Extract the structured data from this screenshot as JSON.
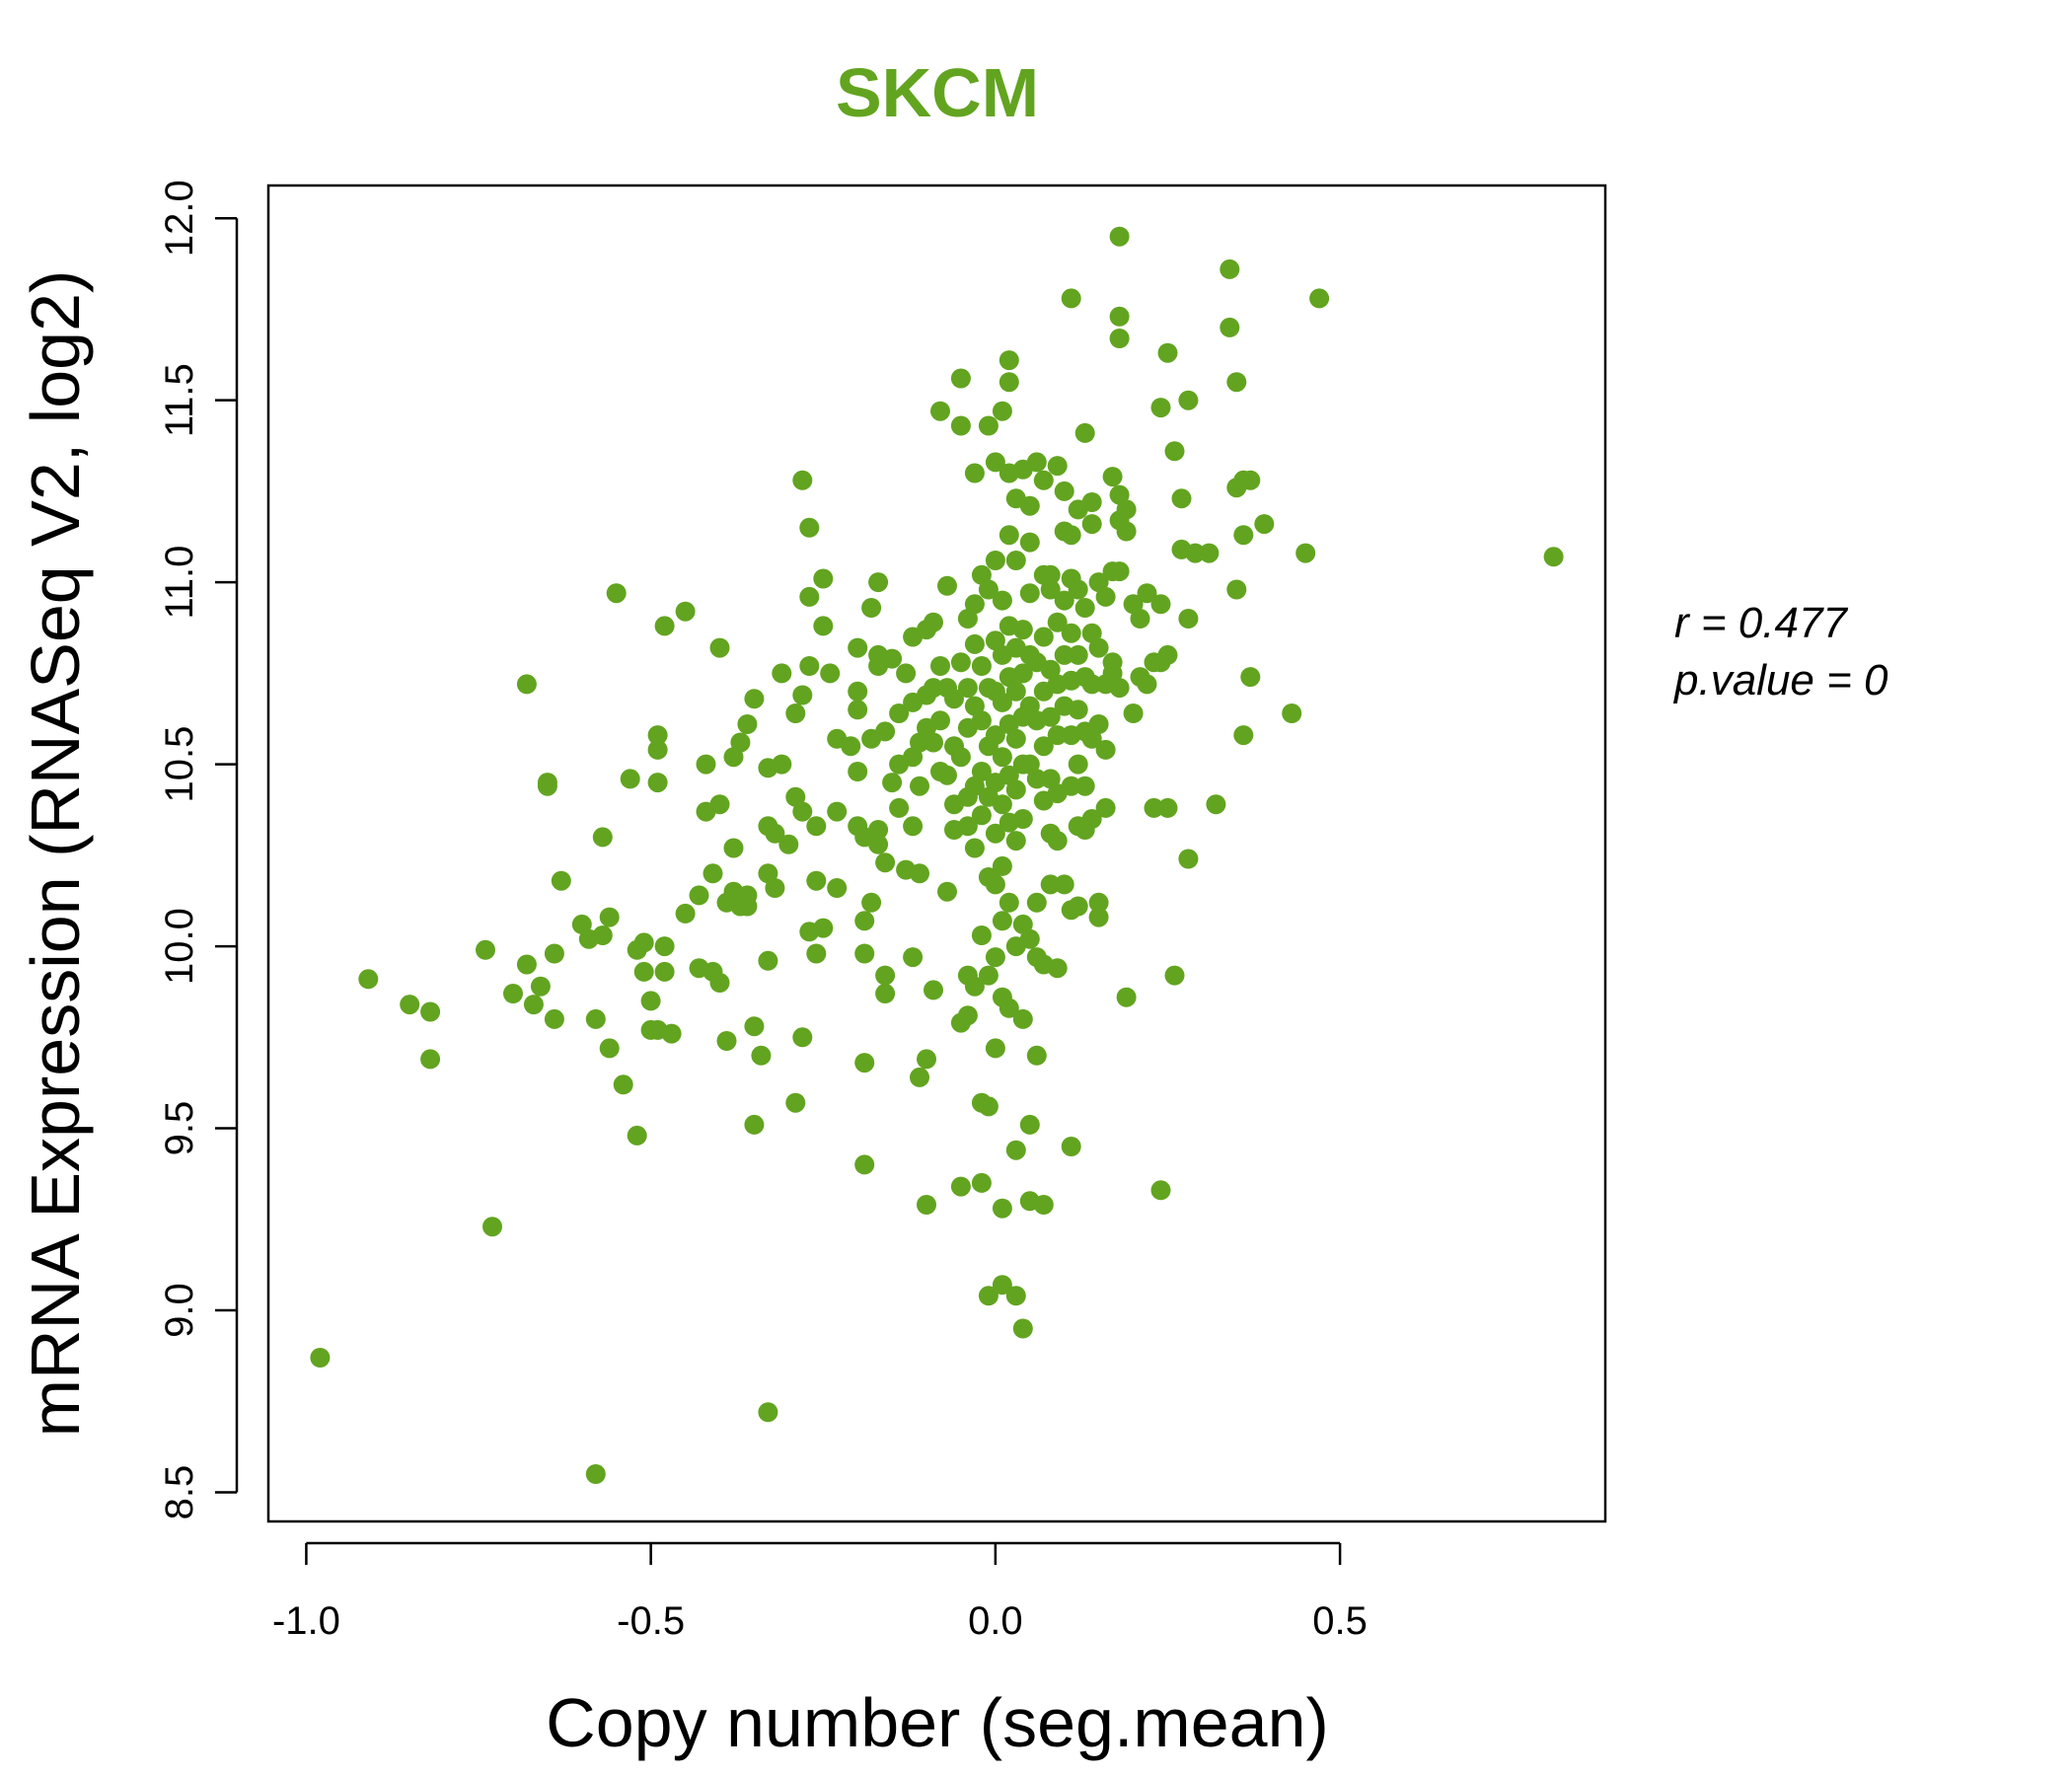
{
  "chart_data": {
    "type": "scatter",
    "title": "SKCM",
    "xlabel": "Copy number (seg.mean)",
    "ylabel": "mRNA Expression (RNASeq V2, log2)",
    "xlim": [
      -1.055,
      0.885
    ],
    "ylim": [
      8.42,
      12.09
    ],
    "x_ticks": [
      -1.0,
      -0.5,
      0.0,
      0.5
    ],
    "x_tick_labels": [
      "-1.0",
      "-0.5",
      "0.0",
      "0.5"
    ],
    "y_ticks": [
      8.5,
      9.0,
      9.5,
      10.0,
      10.5,
      11.0,
      11.5,
      12.0
    ],
    "y_tick_labels": [
      "8.5",
      "9.0",
      "9.5",
      "10.0",
      "10.5",
      "11.0",
      "11.5",
      "12.0"
    ],
    "grid": false,
    "point_color": "#62a420",
    "title_color": "#62a420",
    "annotations": [
      {
        "text": "r = 0.477"
      },
      {
        "text": "p.value = 0"
      }
    ],
    "points": [
      [
        -0.98,
        8.87
      ],
      [
        -0.58,
        8.55
      ],
      [
        -0.33,
        8.72
      ],
      [
        -0.73,
        9.23
      ],
      [
        -0.91,
        9.91
      ],
      [
        -0.85,
        9.84
      ],
      [
        -0.82,
        9.82
      ],
      [
        -0.82,
        9.69
      ],
      [
        -0.74,
        9.99
      ],
      [
        -0.7,
        9.87
      ],
      [
        -0.68,
        9.95
      ],
      [
        -0.67,
        9.84
      ],
      [
        -0.66,
        9.89
      ],
      [
        -0.64,
        9.98
      ],
      [
        -0.64,
        9.8
      ],
      [
        -0.68,
        10.72
      ],
      [
        -0.65,
        10.45
      ],
      [
        -0.65,
        10.44
      ],
      [
        -0.63,
        10.18
      ],
      [
        -0.6,
        10.06
      ],
      [
        -0.59,
        10.02
      ],
      [
        -0.58,
        9.8
      ],
      [
        -0.57,
        10.03
      ],
      [
        -0.56,
        10.08
      ],
      [
        -0.56,
        9.72
      ],
      [
        -0.57,
        10.3
      ],
      [
        -0.55,
        10.97
      ],
      [
        -0.54,
        9.62
      ],
      [
        -0.53,
        10.46
      ],
      [
        -0.52,
        9.99
      ],
      [
        -0.52,
        9.48
      ],
      [
        -0.51,
        10.01
      ],
      [
        -0.51,
        9.93
      ],
      [
        -0.5,
        9.85
      ],
      [
        -0.5,
        9.77
      ],
      [
        -0.49,
        9.77
      ],
      [
        -0.49,
        10.54
      ],
      [
        -0.49,
        10.58
      ],
      [
        -0.49,
        10.45
      ],
      [
        -0.48,
        10.88
      ],
      [
        -0.48,
        9.93
      ],
      [
        -0.48,
        10.0
      ],
      [
        -0.47,
        9.76
      ],
      [
        -0.45,
        10.92
      ],
      [
        -0.45,
        10.09
      ],
      [
        -0.43,
        10.14
      ],
      [
        -0.43,
        9.94
      ],
      [
        -0.42,
        10.37
      ],
      [
        -0.42,
        10.5
      ],
      [
        -0.41,
        10.2
      ],
      [
        -0.41,
        9.93
      ],
      [
        -0.4,
        9.9
      ],
      [
        -0.4,
        10.39
      ],
      [
        -0.4,
        10.82
      ],
      [
        -0.39,
        10.12
      ],
      [
        -0.39,
        9.74
      ],
      [
        -0.38,
        10.15
      ],
      [
        -0.38,
        10.52
      ],
      [
        -0.38,
        10.27
      ],
      [
        -0.37,
        10.11
      ],
      [
        -0.37,
        10.56
      ],
      [
        -0.36,
        10.11
      ],
      [
        -0.36,
        10.61
      ],
      [
        -0.36,
        10.14
      ],
      [
        -0.35,
        10.68
      ],
      [
        -0.35,
        9.51
      ],
      [
        -0.35,
        9.78
      ],
      [
        -0.34,
        9.7
      ],
      [
        -0.33,
        10.49
      ],
      [
        -0.33,
        10.33
      ],
      [
        -0.33,
        10.2
      ],
      [
        -0.33,
        9.96
      ],
      [
        -0.32,
        10.16
      ],
      [
        -0.32,
        10.31
      ],
      [
        -0.31,
        10.5
      ],
      [
        -0.31,
        10.75
      ],
      [
        -0.3,
        10.28
      ],
      [
        -0.29,
        9.57
      ],
      [
        -0.29,
        10.41
      ],
      [
        -0.29,
        10.64
      ],
      [
        -0.28,
        10.69
      ],
      [
        -0.28,
        10.37
      ],
      [
        -0.28,
        11.28
      ],
      [
        -0.28,
        9.75
      ],
      [
        -0.27,
        11.15
      ],
      [
        -0.27,
        10.04
      ],
      [
        -0.27,
        10.77
      ],
      [
        -0.27,
        10.96
      ],
      [
        -0.26,
        10.18
      ],
      [
        -0.26,
        10.33
      ],
      [
        -0.26,
        9.98
      ],
      [
        -0.25,
        10.88
      ],
      [
        -0.25,
        11.01
      ],
      [
        -0.25,
        10.05
      ],
      [
        -0.24,
        10.75
      ],
      [
        -0.23,
        10.16
      ],
      [
        -0.23,
        10.57
      ],
      [
        -0.23,
        10.37
      ],
      [
        -0.21,
        10.55
      ],
      [
        -0.2,
        10.7
      ],
      [
        -0.2,
        10.65
      ],
      [
        -0.2,
        10.48
      ],
      [
        -0.2,
        10.82
      ],
      [
        -0.2,
        10.33
      ],
      [
        -0.19,
        10.3
      ],
      [
        -0.19,
        10.07
      ],
      [
        -0.19,
        9.98
      ],
      [
        -0.19,
        9.68
      ],
      [
        -0.19,
        9.4
      ],
      [
        -0.18,
        10.12
      ],
      [
        -0.18,
        10.57
      ],
      [
        -0.18,
        10.93
      ],
      [
        -0.17,
        10.8
      ],
      [
        -0.17,
        11.0
      ],
      [
        -0.17,
        10.77
      ],
      [
        -0.17,
        10.28
      ],
      [
        -0.17,
        10.32
      ],
      [
        -0.16,
        10.59
      ],
      [
        -0.16,
        10.23
      ],
      [
        -0.16,
        9.92
      ],
      [
        -0.16,
        9.87
      ],
      [
        -0.15,
        10.79
      ],
      [
        -0.15,
        10.45
      ],
      [
        -0.14,
        10.5
      ],
      [
        -0.14,
        10.64
      ],
      [
        -0.14,
        10.38
      ],
      [
        -0.13,
        10.21
      ],
      [
        -0.13,
        10.75
      ],
      [
        -0.12,
        10.85
      ],
      [
        -0.12,
        10.67
      ],
      [
        -0.12,
        10.52
      ],
      [
        -0.12,
        10.33
      ],
      [
        -0.12,
        9.97
      ],
      [
        -0.11,
        10.2
      ],
      [
        -0.11,
        10.56
      ],
      [
        -0.11,
        10.44
      ],
      [
        -0.11,
        9.64
      ],
      [
        -0.1,
        10.69
      ],
      [
        -0.1,
        10.87
      ],
      [
        -0.1,
        10.6
      ],
      [
        -0.1,
        9.69
      ],
      [
        -0.1,
        9.29
      ],
      [
        -0.09,
        10.89
      ],
      [
        -0.09,
        10.71
      ],
      [
        -0.09,
        10.56
      ],
      [
        -0.09,
        9.88
      ],
      [
        -0.08,
        10.62
      ],
      [
        -0.08,
        10.77
      ],
      [
        -0.08,
        10.48
      ],
      [
        -0.08,
        11.47
      ],
      [
        -0.07,
        10.99
      ],
      [
        -0.07,
        10.71
      ],
      [
        -0.07,
        10.47
      ],
      [
        -0.07,
        10.15
      ],
      [
        -0.06,
        10.68
      ],
      [
        -0.06,
        10.55
      ],
      [
        -0.06,
        10.39
      ],
      [
        -0.06,
        10.32
      ],
      [
        -0.05,
        10.78
      ],
      [
        -0.05,
        10.52
      ],
      [
        -0.05,
        9.79
      ],
      [
        -0.05,
        11.56
      ],
      [
        -0.05,
        11.43
      ],
      [
        -0.05,
        9.34
      ],
      [
        -0.04,
        10.9
      ],
      [
        -0.04,
        10.71
      ],
      [
        -0.04,
        10.6
      ],
      [
        -0.04,
        10.41
      ],
      [
        -0.04,
        10.33
      ],
      [
        -0.04,
        9.92
      ],
      [
        -0.04,
        9.81
      ],
      [
        -0.03,
        10.94
      ],
      [
        -0.03,
        10.83
      ],
      [
        -0.03,
        10.66
      ],
      [
        -0.03,
        10.44
      ],
      [
        -0.03,
        10.27
      ],
      [
        -0.03,
        9.89
      ],
      [
        -0.03,
        11.3
      ],
      [
        -0.02,
        11.02
      ],
      [
        -0.02,
        10.77
      ],
      [
        -0.02,
        10.62
      ],
      [
        -0.02,
        10.48
      ],
      [
        -0.02,
        10.36
      ],
      [
        -0.02,
        10.03
      ],
      [
        -0.02,
        9.57
      ],
      [
        -0.02,
        9.35
      ],
      [
        -0.01,
        10.98
      ],
      [
        -0.01,
        10.71
      ],
      [
        -0.01,
        10.55
      ],
      [
        -0.01,
        10.41
      ],
      [
        -0.01,
        10.19
      ],
      [
        -0.01,
        9.92
      ],
      [
        -0.01,
        9.56
      ],
      [
        -0.01,
        9.04
      ],
      [
        -0.01,
        11.43
      ],
      [
        0.0,
        11.06
      ],
      [
        0.0,
        10.84
      ],
      [
        0.0,
        10.7
      ],
      [
        0.0,
        10.58
      ],
      [
        0.0,
        10.45
      ],
      [
        0.0,
        10.31
      ],
      [
        0.0,
        10.17
      ],
      [
        0.0,
        9.97
      ],
      [
        0.0,
        11.33
      ],
      [
        0.0,
        9.72
      ],
      [
        0.01,
        11.47
      ],
      [
        0.01,
        10.95
      ],
      [
        0.01,
        10.8
      ],
      [
        0.01,
        10.67
      ],
      [
        0.01,
        10.52
      ],
      [
        0.01,
        10.39
      ],
      [
        0.01,
        10.22
      ],
      [
        0.01,
        10.07
      ],
      [
        0.01,
        9.86
      ],
      [
        0.01,
        9.07
      ],
      [
        0.01,
        9.28
      ],
      [
        0.02,
        11.61
      ],
      [
        0.02,
        11.55
      ],
      [
        0.02,
        11.13
      ],
      [
        0.02,
        10.88
      ],
      [
        0.02,
        10.74
      ],
      [
        0.02,
        10.61
      ],
      [
        0.02,
        10.47
      ],
      [
        0.02,
        10.34
      ],
      [
        0.02,
        10.12
      ],
      [
        0.02,
        9.83
      ],
      [
        0.02,
        11.3
      ],
      [
        0.03,
        11.06
      ],
      [
        0.03,
        10.82
      ],
      [
        0.03,
        10.7
      ],
      [
        0.03,
        10.57
      ],
      [
        0.03,
        10.43
      ],
      [
        0.03,
        10.29
      ],
      [
        0.03,
        10.0
      ],
      [
        0.03,
        9.44
      ],
      [
        0.03,
        9.04
      ],
      [
        0.03,
        11.23
      ],
      [
        0.04,
        10.87
      ],
      [
        0.04,
        10.75
      ],
      [
        0.04,
        10.63
      ],
      [
        0.04,
        10.5
      ],
      [
        0.04,
        10.35
      ],
      [
        0.04,
        10.06
      ],
      [
        0.04,
        9.8
      ],
      [
        0.04,
        8.95
      ],
      [
        0.04,
        11.31
      ],
      [
        0.05,
        10.97
      ],
      [
        0.05,
        10.8
      ],
      [
        0.05,
        10.66
      ],
      [
        0.05,
        10.5
      ],
      [
        0.05,
        10.02
      ],
      [
        0.05,
        9.51
      ],
      [
        0.05,
        9.3
      ],
      [
        0.05,
        11.21
      ],
      [
        0.05,
        11.11
      ],
      [
        0.06,
        10.78
      ],
      [
        0.06,
        10.62
      ],
      [
        0.06,
        10.46
      ],
      [
        0.06,
        10.12
      ],
      [
        0.06,
        9.97
      ],
      [
        0.06,
        9.7
      ],
      [
        0.06,
        11.33
      ],
      [
        0.07,
        11.02
      ],
      [
        0.07,
        10.85
      ],
      [
        0.07,
        10.7
      ],
      [
        0.07,
        10.55
      ],
      [
        0.07,
        10.4
      ],
      [
        0.07,
        9.95
      ],
      [
        0.07,
        9.29
      ],
      [
        0.07,
        11.28
      ],
      [
        0.08,
        10.98
      ],
      [
        0.08,
        10.76
      ],
      [
        0.08,
        10.63
      ],
      [
        0.08,
        10.46
      ],
      [
        0.08,
        10.31
      ],
      [
        0.08,
        10.17
      ],
      [
        0.08,
        11.02
      ],
      [
        0.09,
        10.89
      ],
      [
        0.09,
        10.72
      ],
      [
        0.09,
        10.58
      ],
      [
        0.09,
        10.42
      ],
      [
        0.09,
        10.29
      ],
      [
        0.09,
        9.94
      ],
      [
        0.09,
        11.32
      ],
      [
        0.1,
        10.95
      ],
      [
        0.1,
        10.8
      ],
      [
        0.1,
        10.66
      ],
      [
        0.1,
        10.17
      ],
      [
        0.1,
        11.14
      ],
      [
        0.1,
        11.25
      ],
      [
        0.11,
        11.01
      ],
      [
        0.11,
        10.86
      ],
      [
        0.11,
        10.73
      ],
      [
        0.11,
        10.58
      ],
      [
        0.11,
        10.44
      ],
      [
        0.11,
        11.78
      ],
      [
        0.11,
        11.13
      ],
      [
        0.11,
        9.45
      ],
      [
        0.11,
        10.1
      ],
      [
        0.12,
        10.98
      ],
      [
        0.12,
        10.8
      ],
      [
        0.12,
        10.65
      ],
      [
        0.12,
        10.5
      ],
      [
        0.12,
        10.33
      ],
      [
        0.12,
        11.2
      ],
      [
        0.12,
        10.11
      ],
      [
        0.13,
        10.93
      ],
      [
        0.13,
        10.74
      ],
      [
        0.13,
        10.59
      ],
      [
        0.13,
        10.44
      ],
      [
        0.13,
        11.41
      ],
      [
        0.13,
        10.32
      ],
      [
        0.14,
        10.86
      ],
      [
        0.14,
        10.72
      ],
      [
        0.14,
        10.57
      ],
      [
        0.14,
        11.22
      ],
      [
        0.14,
        11.16
      ],
      [
        0.14,
        10.35
      ],
      [
        0.15,
        10.82
      ],
      [
        0.15,
        10.61
      ],
      [
        0.15,
        11.0
      ],
      [
        0.15,
        10.12
      ],
      [
        0.15,
        10.08
      ],
      [
        0.16,
        10.72
      ],
      [
        0.16,
        10.54
      ],
      [
        0.16,
        10.38
      ],
      [
        0.16,
        10.96
      ],
      [
        0.17,
        10.78
      ],
      [
        0.17,
        11.03
      ],
      [
        0.17,
        10.75
      ],
      [
        0.17,
        11.29
      ],
      [
        0.18,
        11.95
      ],
      [
        0.18,
        11.73
      ],
      [
        0.18,
        11.67
      ],
      [
        0.18,
        11.24
      ],
      [
        0.18,
        11.17
      ],
      [
        0.18,
        11.03
      ],
      [
        0.18,
        10.71
      ],
      [
        0.19,
        11.2
      ],
      [
        0.19,
        11.14
      ],
      [
        0.19,
        9.86
      ],
      [
        0.2,
        10.94
      ],
      [
        0.2,
        10.64
      ],
      [
        0.21,
        10.9
      ],
      [
        0.21,
        10.74
      ],
      [
        0.22,
        10.97
      ],
      [
        0.22,
        10.72
      ],
      [
        0.23,
        10.38
      ],
      [
        0.23,
        10.78
      ],
      [
        0.24,
        10.94
      ],
      [
        0.24,
        10.78
      ],
      [
        0.24,
        11.48
      ],
      [
        0.24,
        9.33
      ],
      [
        0.25,
        11.63
      ],
      [
        0.25,
        10.8
      ],
      [
        0.25,
        10.38
      ],
      [
        0.26,
        11.36
      ],
      [
        0.26,
        9.92
      ],
      [
        0.27,
        11.23
      ],
      [
        0.27,
        11.09
      ],
      [
        0.28,
        10.9
      ],
      [
        0.28,
        11.5
      ],
      [
        0.28,
        10.24
      ],
      [
        0.29,
        11.08
      ],
      [
        0.31,
        11.08
      ],
      [
        0.32,
        10.39
      ],
      [
        0.34,
        11.86
      ],
      [
        0.34,
        11.7
      ],
      [
        0.35,
        11.55
      ],
      [
        0.35,
        10.98
      ],
      [
        0.35,
        11.26
      ],
      [
        0.36,
        11.28
      ],
      [
        0.36,
        11.13
      ],
      [
        0.37,
        11.28
      ],
      [
        0.37,
        10.74
      ],
      [
        0.36,
        10.58
      ],
      [
        0.39,
        11.16
      ],
      [
        0.43,
        10.64
      ],
      [
        0.45,
        11.08
      ],
      [
        0.47,
        11.78
      ],
      [
        0.81,
        11.07
      ]
    ]
  }
}
